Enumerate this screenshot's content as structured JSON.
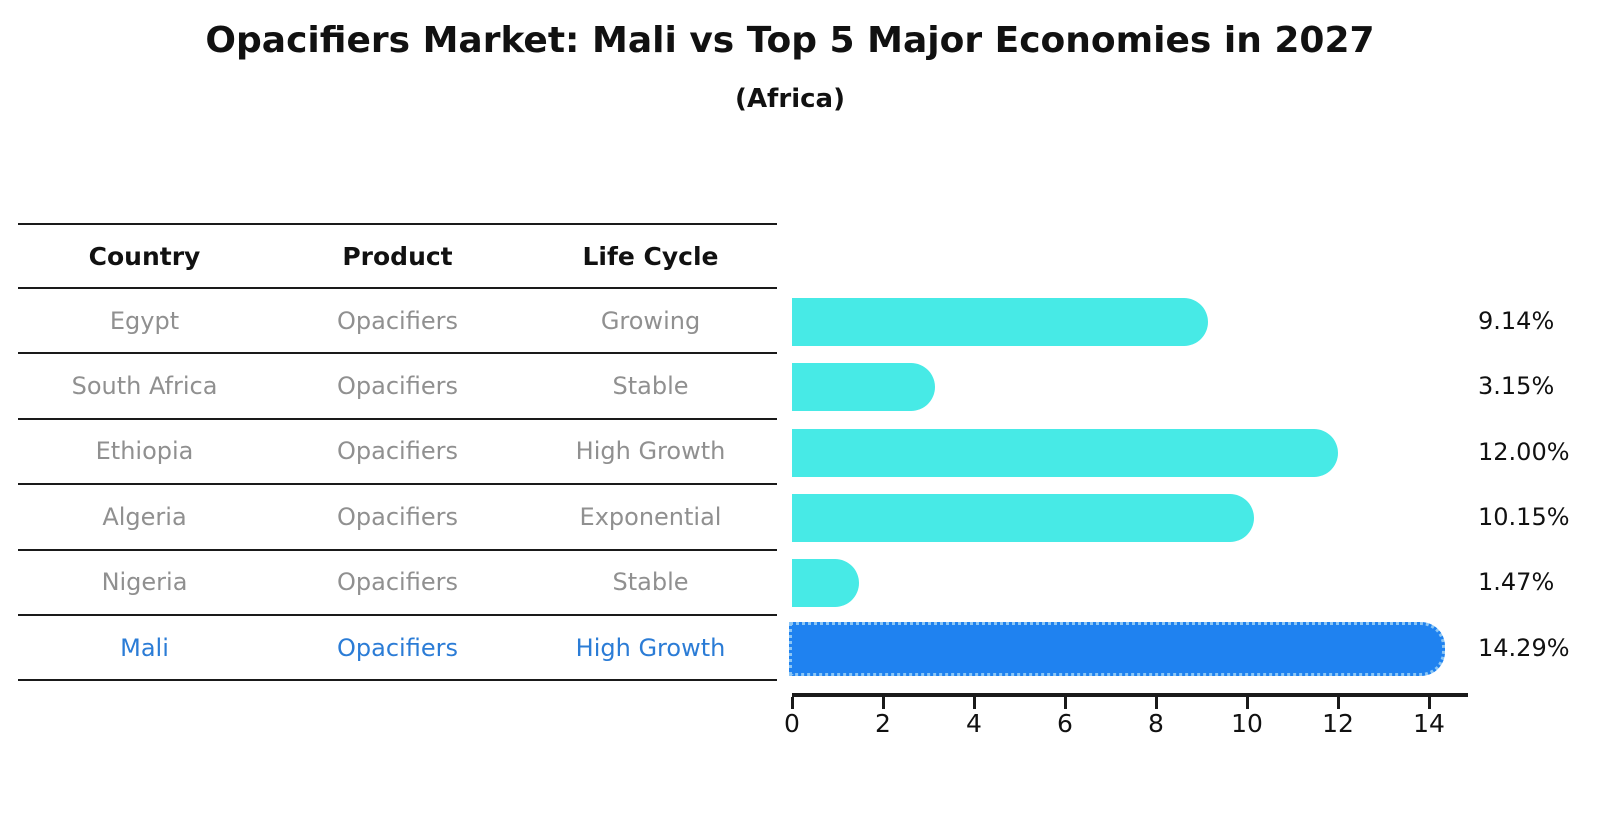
{
  "header": {
    "title": "Opacifiers Market: Mali vs Top 5 Major Economies in 2027",
    "subtitle": "(Africa)"
  },
  "table": {
    "columns": [
      "Country",
      "Product",
      "Life Cycle"
    ],
    "rows": [
      {
        "country": "Egypt",
        "product": "Opacifiers",
        "life_cycle": "Growing",
        "highlight": false
      },
      {
        "country": "South Africa",
        "product": "Opacifiers",
        "life_cycle": "Stable",
        "highlight": false
      },
      {
        "country": "Ethiopia",
        "product": "Opacifiers",
        "life_cycle": "High Growth",
        "highlight": false
      },
      {
        "country": "Algeria",
        "product": "Opacifiers",
        "life_cycle": "Exponential",
        "highlight": false
      },
      {
        "country": "Nigeria",
        "product": "Opacifiers",
        "life_cycle": "Stable",
        "highlight": false
      },
      {
        "country": "Mali",
        "product": "Opacifiers",
        "life_cycle": "High Growth",
        "highlight": true
      }
    ]
  },
  "chart_data": {
    "type": "bar",
    "orientation": "horizontal",
    "title": "Opacifiers Market: Mali vs Top 5 Major Economies in 2027",
    "subtitle": "(Africa)",
    "categories": [
      "Egypt",
      "South Africa",
      "Ethiopia",
      "Algeria",
      "Nigeria",
      "Mali"
    ],
    "values": [
      9.14,
      3.15,
      12.0,
      10.15,
      1.47,
      14.29
    ],
    "value_labels": [
      "9.14%",
      "3.15%",
      "12.00%",
      "10.15%",
      "1.47%",
      "14.29%"
    ],
    "xlabel": "",
    "ylabel": "",
    "xlim": [
      0,
      14.85
    ],
    "xticks": [
      0,
      2,
      4,
      6,
      8,
      10,
      12,
      14
    ],
    "grid": false,
    "legend": false,
    "highlight_index": 5
  },
  "colors": {
    "bar_cyan": "#47EAE6",
    "bar_blue": "#1F82F0",
    "blue_edge_dots": "#8CC6F4",
    "table_text_gray": "#909090",
    "highlight_text_blue": "#2B7CD6",
    "text_black": "#111111"
  }
}
